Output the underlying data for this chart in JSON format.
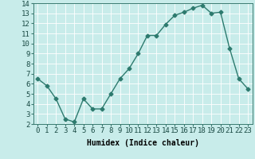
{
  "x": [
    0,
    1,
    2,
    3,
    4,
    5,
    6,
    7,
    8,
    9,
    10,
    11,
    12,
    13,
    14,
    15,
    16,
    17,
    18,
    19,
    20,
    21,
    22,
    23
  ],
  "y": [
    6.5,
    5.8,
    4.5,
    2.5,
    2.2,
    4.5,
    3.5,
    3.5,
    5.0,
    6.5,
    7.5,
    9.0,
    10.8,
    10.8,
    11.9,
    12.8,
    13.1,
    13.5,
    13.8,
    13.0,
    13.1,
    9.5,
    6.5,
    5.5
  ],
  "line_color": "#2d7a6e",
  "marker": "D",
  "marker_size": 2.5,
  "bg_color": "#c8ecea",
  "grid_color": "#ffffff",
  "xlabel": "Humidex (Indice chaleur)",
  "xlabel_fontsize": 7,
  "tick_fontsize": 6.5,
  "ylim": [
    2,
    14
  ],
  "xlim": [
    -0.5,
    23.5
  ],
  "yticks": [
    2,
    3,
    4,
    5,
    6,
    7,
    8,
    9,
    10,
    11,
    12,
    13,
    14
  ],
  "xticks": [
    0,
    1,
    2,
    3,
    4,
    5,
    6,
    7,
    8,
    9,
    10,
    11,
    12,
    13,
    14,
    15,
    16,
    17,
    18,
    19,
    20,
    21,
    22,
    23
  ]
}
